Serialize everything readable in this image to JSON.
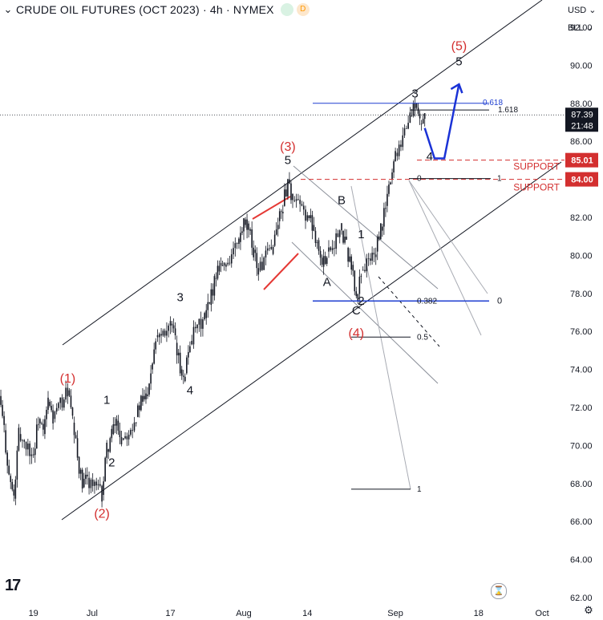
{
  "header": {
    "title": "CRUDE OIL FUTURES (OCT 2023) · 4h · NYMEX",
    "badge_market": "",
    "badge_delay": "D"
  },
  "right_controls": {
    "currency": "USD",
    "scale_mode": "BLL"
  },
  "footer": {
    "logo": "17"
  },
  "chart_data": {
    "type": "candlestick",
    "title": "CRUDE OIL FUTURES (OCT 2023) · 4h · NYMEX",
    "ylim": [
      62.0,
      92.0
    ],
    "y_ticks": [
      "92.00",
      "90.00",
      "88.00",
      "86.00",
      "84.00",
      "82.00",
      "80.00",
      "78.00",
      "76.00",
      "74.00",
      "72.00",
      "70.00",
      "68.00",
      "66.00",
      "64.00",
      "62.00"
    ],
    "x_ticks": [
      "19",
      "Jul",
      "17",
      "Aug",
      "14",
      "Sep",
      "18",
      "Oct"
    ],
    "last_price": "87.39",
    "countdown": "21:48",
    "price_path": [
      [
        "2023-06-12",
        72.6
      ],
      [
        "2023-06-13",
        70.8
      ],
      [
        "2023-06-14",
        68.4
      ],
      [
        "2023-06-15",
        67.2
      ],
      [
        "2023-06-16",
        70.6
      ],
      [
        "2023-06-19",
        69.5
      ],
      [
        "2023-06-20",
        71.4
      ],
      [
        "2023-06-21",
        70.6
      ],
      [
        "2023-06-22",
        72.3
      ],
      [
        "2023-06-23",
        71.4
      ],
      [
        "2023-06-26",
        72.9
      ],
      [
        "2023-06-27",
        71.2
      ],
      [
        "2023-06-28",
        69.4
      ],
      [
        "2023-06-29",
        67.8
      ],
      [
        "2023-06-30",
        68.3
      ],
      [
        "2023-07-03",
        67.4
      ],
      [
        "2023-07-04",
        69.8
      ],
      [
        "2023-07-05",
        70.6
      ],
      [
        "2023-07-06",
        71.3
      ],
      [
        "2023-07-07",
        70.3
      ],
      [
        "2023-07-10",
        71.5
      ],
      [
        "2023-07-11",
        72.3
      ],
      [
        "2023-07-12",
        72.6
      ],
      [
        "2023-07-13",
        74.0
      ],
      [
        "2023-07-14",
        75.8
      ],
      [
        "2023-07-17",
        76.4
      ],
      [
        "2023-07-18",
        75.4
      ],
      [
        "2023-07-19",
        74.0
      ],
      [
        "2023-07-20",
        73.8
      ],
      [
        "2023-07-21",
        75.5
      ],
      [
        "2023-07-24",
        76.7
      ],
      [
        "2023-07-25",
        77.4
      ],
      [
        "2023-07-26",
        78.8
      ],
      [
        "2023-07-27",
        79.6
      ],
      [
        "2023-07-28",
        79.4
      ],
      [
        "2023-07-31",
        80.7
      ],
      [
        "2023-08-01",
        81.6
      ],
      [
        "2023-08-02",
        81.3
      ],
      [
        "2023-08-03",
        80.3
      ],
      [
        "2023-08-04",
        79.2
      ],
      [
        "2023-08-07",
        80.5
      ],
      [
        "2023-08-08",
        81.8
      ],
      [
        "2023-08-09",
        82.6
      ],
      [
        "2023-08-10",
        84.0
      ],
      [
        "2023-08-11",
        82.9
      ],
      [
        "2023-08-14",
        82.1
      ],
      [
        "2023-08-15",
        81.6
      ],
      [
        "2023-08-16",
        80.8
      ],
      [
        "2023-08-17",
        79.4
      ],
      [
        "2023-08-18",
        80.2
      ],
      [
        "2023-08-21",
        81.3
      ],
      [
        "2023-08-22",
        80.4
      ],
      [
        "2023-08-23",
        79.5
      ],
      [
        "2023-08-24",
        77.6
      ],
      [
        "2023-08-25",
        79.2
      ],
      [
        "2023-08-28",
        80.2
      ],
      [
        "2023-08-29",
        81.3
      ],
      [
        "2023-08-30",
        82.6
      ],
      [
        "2023-08-31",
        84.0
      ],
      [
        "2023-09-01",
        85.4
      ],
      [
        "2023-09-04",
        87.3
      ],
      [
        "2023-09-05",
        88.0
      ],
      [
        "2023-09-06",
        86.9
      ],
      [
        "2023-09-07",
        87.4
      ]
    ],
    "support_lines": [
      {
        "label": "SUPPORT",
        "value": "85.01",
        "color": "#d32f2f"
      },
      {
        "label": "SUPPORT",
        "value": "84.00",
        "color": "#d32f2f"
      }
    ],
    "fib_levels_upper": [
      {
        "label": "0.618",
        "value": 88.0,
        "color": "#1f3fd1"
      },
      {
        "label": "1.618",
        "value": 87.65,
        "color": "#131722"
      },
      {
        "label": "0",
        "value": 84.0,
        "color": "#131722"
      },
      {
        "label": "1",
        "value": 84.0,
        "color": "#131722"
      }
    ],
    "fib_levels_lower": [
      {
        "label": "0.382",
        "value": 77.6,
        "color": "#131722"
      },
      {
        "label": "0",
        "value": 77.6,
        "color": "#131722"
      },
      {
        "label": "0.5",
        "value": 75.7,
        "color": "#131722"
      },
      {
        "label": "1",
        "value": 67.7,
        "color": "#131722"
      }
    ],
    "wave_labels": [
      {
        "text": "(1)",
        "color": "#d32f2f",
        "date": "2023-06-26",
        "price": 73.3
      },
      {
        "text": "(2)",
        "color": "#d32f2f",
        "date": "2023-07-03",
        "price": 66.2
      },
      {
        "text": "(3)",
        "color": "#d32f2f",
        "date": "2023-08-10",
        "price": 85.5
      },
      {
        "text": "(4)",
        "color": "#d32f2f",
        "date": "2023-08-24",
        "price": 75.7
      },
      {
        "text": "(5)",
        "color": "#d32f2f",
        "date": "2023-09-14",
        "price": 90.8
      },
      {
        "text": "1",
        "color": "#131722",
        "date": "2023-07-04",
        "price": 72.2
      },
      {
        "text": "2",
        "color": "#131722",
        "date": "2023-07-05",
        "price": 68.9
      },
      {
        "text": "3",
        "color": "#131722",
        "date": "2023-07-19",
        "price": 77.6
      },
      {
        "text": "4",
        "color": "#131722",
        "date": "2023-07-21",
        "price": 72.7
      },
      {
        "text": "5",
        "color": "#131722",
        "date": "2023-08-10",
        "price": 84.8
      },
      {
        "text": "A",
        "color": "#131722",
        "date": "2023-08-18",
        "price": 78.4
      },
      {
        "text": "B",
        "color": "#131722",
        "date": "2023-08-21",
        "price": 82.7
      },
      {
        "text": "C",
        "color": "#131722",
        "date": "2023-08-24",
        "price": 76.9
      },
      {
        "text": "1",
        "color": "#131722",
        "date": "2023-08-25",
        "price": 80.9
      },
      {
        "text": "2",
        "color": "#131722",
        "date": "2023-08-25",
        "price": 77.4
      },
      {
        "text": "3",
        "color": "#131722",
        "date": "2023-09-05",
        "price": 88.3
      },
      {
        "text": "4",
        "color": "#131722",
        "date": "2023-09-08",
        "price": 85.0
      },
      {
        "text": "5",
        "color": "#131722",
        "date": "2023-09-14",
        "price": 90.0
      }
    ],
    "projection": [
      [
        "2023-09-07",
        86.7
      ],
      [
        "2023-09-09",
        85.1
      ],
      [
        "2023-09-11",
        85.1
      ],
      [
        "2023-09-14",
        89.0
      ]
    ],
    "colors": {
      "up": "#131722",
      "down": "#131722",
      "support": "#d32f2f",
      "projection": "#1a32d6",
      "fib": "#1f3fd1"
    }
  }
}
